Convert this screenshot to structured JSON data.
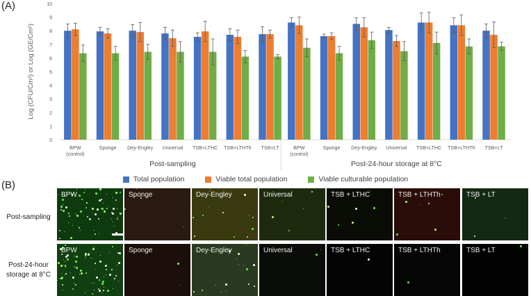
{
  "panel_a_label": "(A)",
  "panel_b_label": "(B)",
  "chart_data": {
    "type": "bar",
    "title": "",
    "ylabel": "Log (CFU/Cm²) or Log (GE/Cm²)",
    "xlabel": "",
    "ylim": [
      0,
      10
    ],
    "yticks": [
      0,
      1,
      2,
      3,
      4,
      5,
      6,
      7,
      8,
      9,
      10
    ],
    "grid": false,
    "legend_position": "bottom",
    "groups": [
      {
        "label": "Post-sampling",
        "categories": [
          [
            "BPW",
            "(control)"
          ],
          [
            "Sponge"
          ],
          [
            "Dey-Engley"
          ],
          [
            "Universal"
          ],
          [
            "TSB+LTHC"
          ],
          [
            "TSB+LTHTh"
          ],
          [
            "TSB+LT"
          ]
        ],
        "series": [
          {
            "name": "Total population",
            "color": "#4472c4",
            "values": [
              8.0,
              7.95,
              8.0,
              7.8,
              7.55,
              7.7,
              7.75
            ],
            "errors": [
              0.5,
              0.3,
              0.45,
              0.45,
              0.3,
              0.45,
              0.55
            ]
          },
          {
            "name": "Viable total population",
            "color": "#ed7d31",
            "values": [
              8.1,
              7.8,
              7.9,
              7.45,
              7.95,
              7.55,
              7.75
            ],
            "errors": [
              0.45,
              0.35,
              0.7,
              0.6,
              0.75,
              0.5,
              0.3
            ]
          },
          {
            "name": "Viable culturable population",
            "color": "#70ad47",
            "values": [
              6.35,
              6.35,
              6.45,
              6.45,
              6.45,
              6.1,
              6.1
            ],
            "errors": [
              0.6,
              0.5,
              0.55,
              0.75,
              0.95,
              0.45,
              0.15
            ]
          }
        ]
      },
      {
        "label": "Post-24-hour storage at 8°C",
        "categories": [
          [
            "BPW",
            "(control)"
          ],
          [
            "Sponge"
          ],
          [
            "Dey-Engley"
          ],
          [
            "Universal"
          ],
          [
            "TSB+LTHC"
          ],
          [
            "TSB+LTHTh"
          ],
          [
            "TSB+LT"
          ]
        ],
        "series": [
          {
            "name": "Total population",
            "color": "#4472c4",
            "values": [
              8.6,
              7.6,
              8.5,
              8.05,
              8.6,
              8.4,
              8.0
            ],
            "errors": [
              0.35,
              0.15,
              0.45,
              0.2,
              0.7,
              0.55,
              0.5
            ]
          },
          {
            "name": "Viable total population",
            "color": "#ed7d31",
            "values": [
              8.4,
              7.6,
              8.25,
              7.25,
              8.6,
              8.4,
              7.7
            ],
            "errors": [
              0.6,
              0.25,
              0.7,
              0.4,
              0.75,
              0.75,
              0.95
            ]
          },
          {
            "name": "Viable culturable population",
            "color": "#70ad47",
            "values": [
              6.75,
              6.35,
              7.3,
              6.5,
              7.1,
              6.85,
              6.85
            ],
            "errors": [
              0.65,
              0.5,
              0.6,
              0.7,
              0.8,
              0.55,
              0.3
            ]
          }
        ]
      }
    ]
  },
  "legend": {
    "items": [
      {
        "label": "Total population",
        "color": "#4472c4"
      },
      {
        "label": "Viable total population",
        "color": "#ed7d31"
      },
      {
        "label": "Viable culturable population",
        "color": "#70ad47"
      }
    ]
  },
  "micrographs": {
    "rows": [
      {
        "label_line1": "Post-sampling",
        "label_line2": ""
      },
      {
        "label_line1": "Post-24-hour",
        "label_line2": "storage at 8°C"
      }
    ],
    "columns": [
      "BPW",
      "Sponge",
      "Dey-Engley",
      "Universal",
      "TSB + LTHC",
      "TSB + LTHTh",
      "TSB + LT"
    ],
    "tile_colors": {
      "row1": [
        "#0f3a0f",
        "#2a1a10",
        "#3a3a10",
        "#1e2a0e",
        "#0a0c06",
        "#2a0c08",
        "#122a12"
      ],
      "row2": [
        "#123f12",
        "#1c0e0a",
        "#2a3a20",
        "#0a0c08",
        "#040404",
        "#060505",
        "#020202"
      ]
    }
  }
}
